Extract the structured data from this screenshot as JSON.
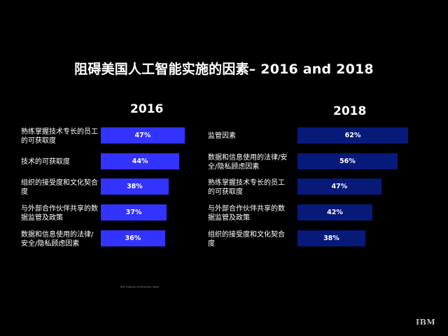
{
  "title": "阻碍美国人工智能实施的因素– 2016 and 2018",
  "footnote": "IBM Institute for Business Value",
  "logo": "IBM",
  "colors": {
    "background": "#000000",
    "bar_2016": "#3333ff",
    "bar_2018": "#071a7a",
    "text": "#ffffff"
  },
  "chart_data": [
    {
      "type": "bar",
      "orientation": "horizontal",
      "title": "2016",
      "categories": [
        "熟练掌握技术专长的员工的可获取度",
        "技术的可获取度",
        "组织的接受度和文化契合度",
        "与外部合作伙伴共享的数据监管及政策",
        "数据和信息使用的法律/安全/隐私顾虑因素"
      ],
      "values": [
        47,
        44,
        38,
        37,
        36
      ],
      "value_labels": [
        "47%",
        "44%",
        "38%",
        "37%",
        "36%"
      ],
      "unit": "%",
      "xlim": [
        0,
        100
      ],
      "grid": false,
      "legend": "none"
    },
    {
      "type": "bar",
      "orientation": "horizontal",
      "title": "2018",
      "categories": [
        "监管因素",
        "数据和信息使用的法律/安全/隐私顾虑因素",
        "熟练掌握技术专长的员工的可获取度",
        "与外部合作伙伴共享的数据监管及政策",
        "组织的接受度和文化契合度"
      ],
      "values": [
        62,
        56,
        47,
        42,
        38
      ],
      "value_labels": [
        "62%",
        "56%",
        "47%",
        "42%",
        "38%"
      ],
      "unit": "%",
      "xlim": [
        0,
        100
      ],
      "grid": false,
      "legend": "none"
    }
  ]
}
